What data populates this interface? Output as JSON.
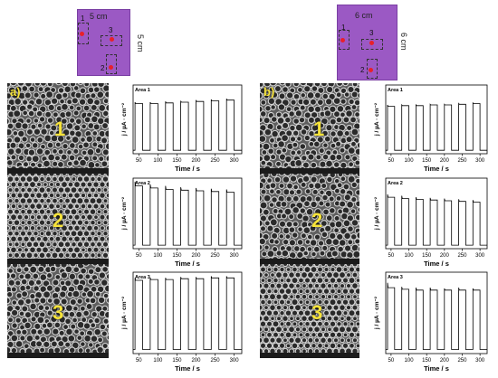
{
  "samples": {
    "a": {
      "width_label": "5 cm",
      "height_label": "5 cm",
      "areas": [
        "1",
        "2",
        "3"
      ]
    },
    "b": {
      "width_label": "6 cm",
      "height_label": "6 cm",
      "areas": [
        "1",
        "2",
        "3"
      ]
    }
  },
  "panels": {
    "a": {
      "label": "a)"
    },
    "b": {
      "label": "b)"
    }
  },
  "colors": {
    "sample_fill": "#9b59c4",
    "area_dot": "#e8202a",
    "sem_numbers": "#f7e43a",
    "trace": "#000000"
  },
  "chart_data": [
    {
      "type": "line",
      "panel": "a",
      "title": "Area 1",
      "sem_number": "1",
      "xlabel": "Time / s",
      "ylabel": "j / µA · cm⁻²",
      "xlim": [
        35,
        320
      ],
      "ylim": [
        -5,
        95
      ],
      "xticks": [
        50,
        100,
        150,
        200,
        250,
        300
      ],
      "series": [
        {
          "x_start": 40,
          "period": 40,
          "on_duration": 20,
          "baseline": 0,
          "pulses": [
            {
              "peak": 70,
              "plateau": 68
            },
            {
              "peak": 70,
              "plateau": 68
            },
            {
              "peak": 71,
              "plateau": 69
            },
            {
              "peak": 72,
              "plateau": 70
            },
            {
              "peak": 73,
              "plateau": 71
            },
            {
              "peak": 74,
              "plateau": 72
            },
            {
              "peak": 75,
              "plateau": 73
            }
          ]
        }
      ]
    },
    {
      "type": "line",
      "panel": "a",
      "title": "Area 2",
      "sem_number": "2",
      "xlabel": "Time / s",
      "ylabel": "j / µA · cm⁻²",
      "xlim": [
        35,
        320
      ],
      "ylim": [
        -5,
        95
      ],
      "xticks": [
        50,
        100,
        150,
        200,
        250,
        300
      ],
      "series": [
        {
          "x_start": 40,
          "period": 40,
          "on_duration": 20,
          "baseline": 0,
          "pulses": [
            {
              "peak": 90,
              "plateau": 84
            },
            {
              "peak": 86,
              "plateau": 81
            },
            {
              "peak": 84,
              "plateau": 79
            },
            {
              "peak": 82,
              "plateau": 78
            },
            {
              "peak": 81,
              "plateau": 77
            },
            {
              "peak": 80,
              "plateau": 76
            },
            {
              "peak": 79,
              "plateau": 75
            }
          ]
        }
      ]
    },
    {
      "type": "line",
      "panel": "a",
      "title": "Area 3",
      "sem_number": "3",
      "xlabel": "Time / s",
      "ylabel": "j / µA · cm⁻²",
      "xlim": [
        35,
        320
      ],
      "ylim": [
        -5,
        95
      ],
      "xticks": [
        50,
        100,
        150,
        200,
        250,
        300
      ],
      "series": [
        {
          "x_start": 40,
          "period": 40,
          "on_duration": 20,
          "baseline": 0,
          "pulses": [
            {
              "peak": 88,
              "plateau": 85
            },
            {
              "peak": 88,
              "plateau": 86
            },
            {
              "peak": 88,
              "plateau": 86
            },
            {
              "peak": 89,
              "plateau": 87
            },
            {
              "peak": 89,
              "plateau": 87
            },
            {
              "peak": 90,
              "plateau": 88
            },
            {
              "peak": 90,
              "plateau": 88
            }
          ]
        }
      ]
    },
    {
      "type": "line",
      "panel": "b",
      "title": "Area 1",
      "sem_number": "1",
      "xlabel": "Time / s",
      "ylabel": "j / µA · cm⁻²",
      "xlim": [
        35,
        320
      ],
      "ylim": [
        -5,
        95
      ],
      "xticks": [
        50,
        100,
        150,
        200,
        250,
        300
      ],
      "series": [
        {
          "x_start": 40,
          "period": 40,
          "on_duration": 20,
          "baseline": 0,
          "pulses": [
            {
              "peak": 66,
              "plateau": 64
            },
            {
              "peak": 66,
              "plateau": 65
            },
            {
              "peak": 66,
              "plateau": 65
            },
            {
              "peak": 67,
              "plateau": 66
            },
            {
              "peak": 67,
              "plateau": 66
            },
            {
              "peak": 68,
              "plateau": 67
            },
            {
              "peak": 69,
              "plateau": 68
            }
          ]
        }
      ]
    },
    {
      "type": "line",
      "panel": "b",
      "title": "Area 2",
      "sem_number": "2",
      "xlabel": "Time / s",
      "ylabel": "j / µA · cm⁻²",
      "xlim": [
        35,
        320
      ],
      "ylim": [
        -5,
        95
      ],
      "xticks": [
        50,
        100,
        150,
        200,
        250,
        300
      ],
      "series": [
        {
          "x_start": 40,
          "period": 40,
          "on_duration": 20,
          "baseline": 0,
          "pulses": [
            {
              "peak": 72,
              "plateau": 68
            },
            {
              "peak": 70,
              "plateau": 66
            },
            {
              "peak": 68,
              "plateau": 65
            },
            {
              "peak": 67,
              "plateau": 64
            },
            {
              "peak": 66,
              "plateau": 63
            },
            {
              "peak": 65,
              "plateau": 62
            },
            {
              "peak": 64,
              "plateau": 61
            }
          ]
        }
      ]
    },
    {
      "type": "line",
      "panel": "b",
      "title": "Area 3",
      "sem_number": "3",
      "xlabel": "Time / s",
      "ylabel": "j / µA · cm⁻²",
      "xlim": [
        35,
        320
      ],
      "ylim": [
        -5,
        95
      ],
      "xticks": [
        50,
        100,
        150,
        200,
        250,
        300
      ],
      "series": [
        {
          "x_start": 40,
          "period": 40,
          "on_duration": 20,
          "baseline": 0,
          "pulses": [
            {
              "peak": 82,
              "plateau": 76
            },
            {
              "peak": 77,
              "plateau": 74
            },
            {
              "peak": 76,
              "plateau": 73
            },
            {
              "peak": 76,
              "plateau": 73
            },
            {
              "peak": 75,
              "plateau": 73
            },
            {
              "peak": 76,
              "plateau": 73
            },
            {
              "peak": 75,
              "plateau": 73
            }
          ]
        }
      ]
    }
  ]
}
